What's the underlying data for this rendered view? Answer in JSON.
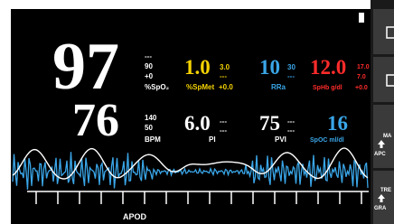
{
  "spo2": {
    "value": "97",
    "alarm_high": "---",
    "alarm_low": "90",
    "offset": "+0",
    "label": "%SpO₂"
  },
  "spmet": {
    "value": "1.0",
    "alarm_high": "3.0",
    "alarm_low": "---",
    "label": "%SpMet",
    "offset": "+0.0"
  },
  "rra": {
    "value": "10",
    "alarm_high": "30",
    "alarm_low": "---",
    "label": "RRa"
  },
  "sphb": {
    "value": "12.0",
    "alarm_high": "17.0",
    "alarm_low": "7.0",
    "label": "SpHb g/dl",
    "offset": "+0.0"
  },
  "pr": {
    "value": "76",
    "alarm_high": "140",
    "alarm_low": "50",
    "label": "BPM"
  },
  "pi": {
    "value": "6.0",
    "alarm_high": "---",
    "alarm_low": "---",
    "label": "PI"
  },
  "pvi": {
    "value": "75",
    "alarm_high": "---",
    "alarm_low": "---",
    "label": "PVI"
  },
  "spoc": {
    "value": "16",
    "label": "SpOC ml/dl"
  },
  "waveform_label": "APOD",
  "side_buttons": [
    {
      "line1": "MA",
      "line2": "APC"
    },
    {
      "line1": "TRE",
      "line2": "GRA"
    }
  ]
}
